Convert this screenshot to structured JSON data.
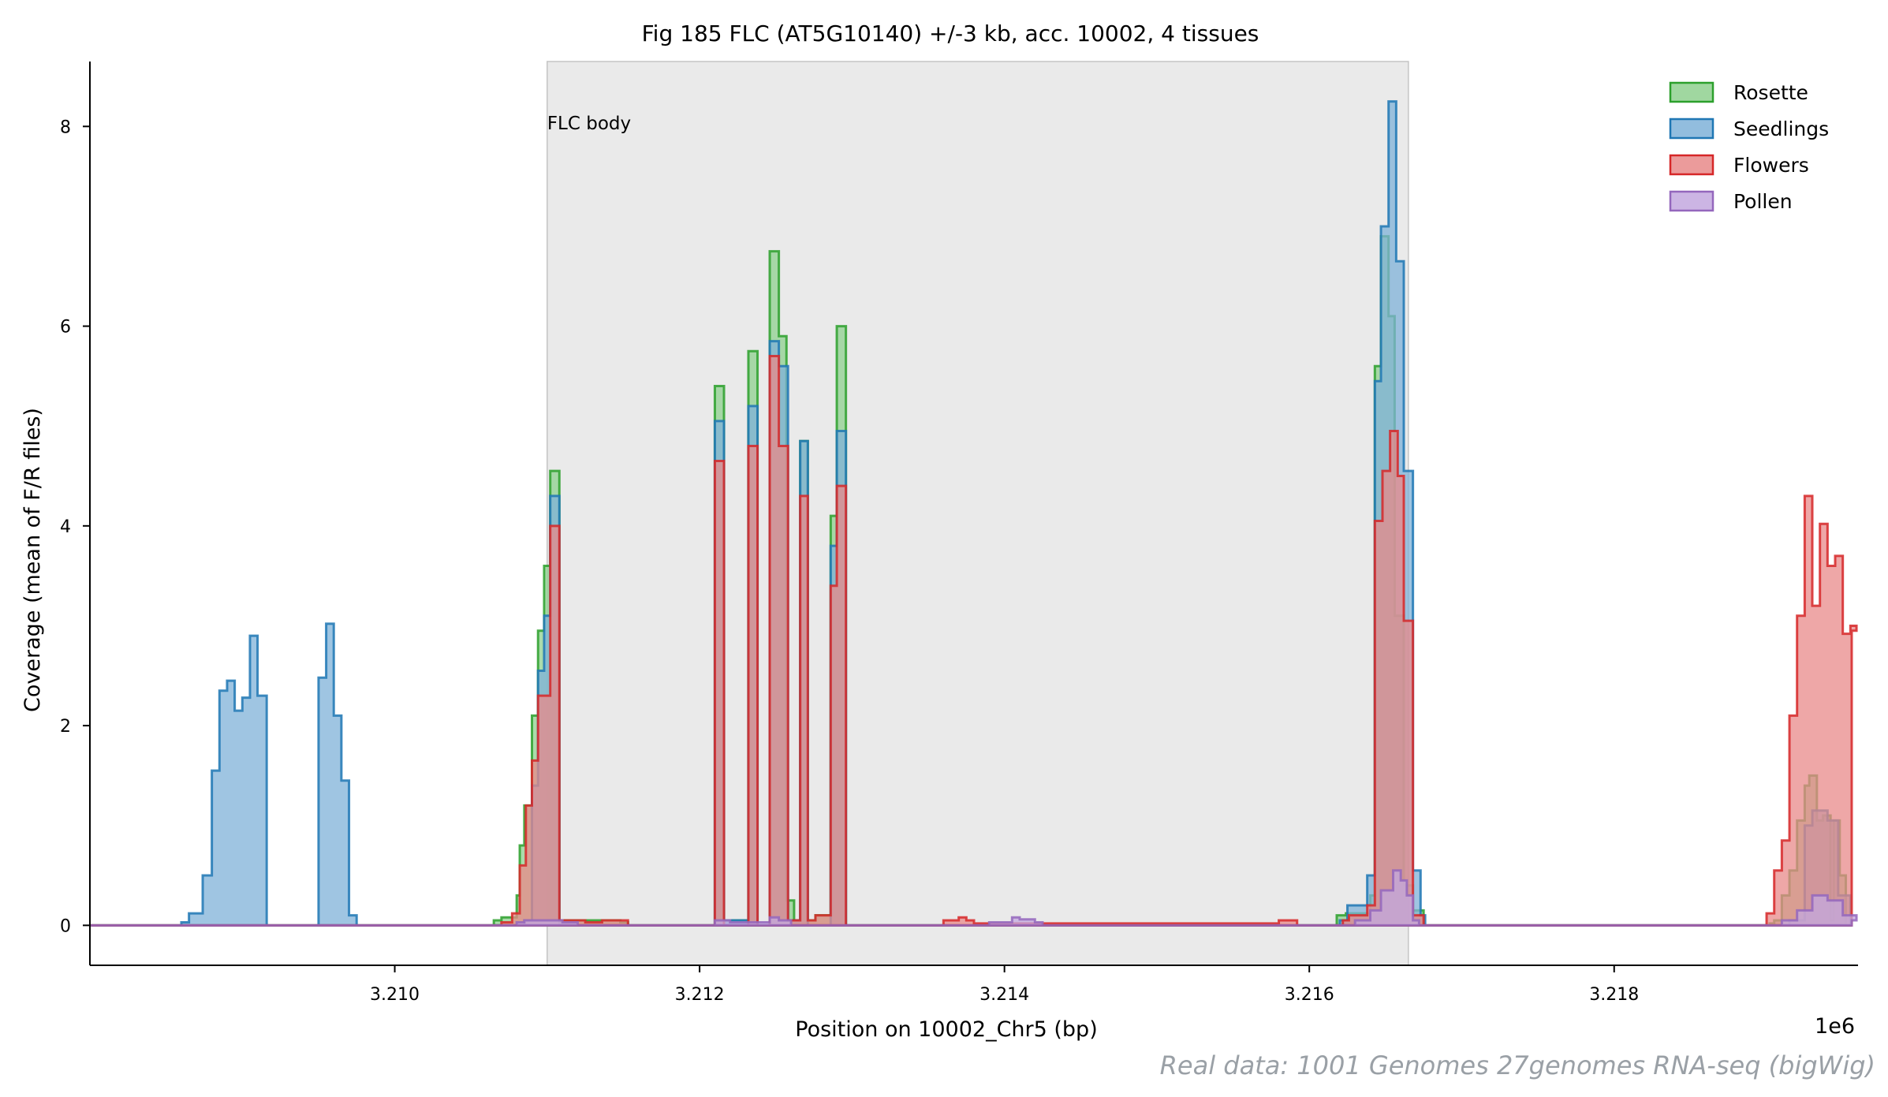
{
  "chart_data": {
    "type": "area",
    "title": "Fig 185  FLC (AT5G10140) +/-3 kb, acc. 10002, 4 tissues",
    "xlabel": "Position on 10002_Chr5 (bp)",
    "ylabel": "Coverage (mean of F/R files)",
    "x_offset_label": "1e6",
    "xlim": [
      3208000,
      3219600
    ],
    "ylim": [
      -0.4,
      8.65
    ],
    "x_ticks": [
      3210000,
      3212000,
      3214000,
      3216000,
      3218000
    ],
    "x_tick_labels": [
      "3.210",
      "3.212",
      "3.214",
      "3.216",
      "3.218"
    ],
    "y_ticks": [
      0,
      2,
      4,
      6,
      8
    ],
    "y_tick_labels": [
      "0",
      "2",
      "4",
      "6",
      "8"
    ],
    "legend_position": "top-right",
    "region": {
      "label": "FLC body",
      "start": 3211000,
      "end": 3216650
    },
    "footer": "Real data: 1001 Genomes 27genomes RNA-seq (bigWig)",
    "series": [
      {
        "name": "Rosette",
        "color": "#2ca02c",
        "fill": "#8fd08f",
        "points": [
          [
            3208000,
            0
          ],
          [
            3210650,
            0.05
          ],
          [
            3210700,
            0.08
          ],
          [
            3210800,
            0.3
          ],
          [
            3210820,
            0.8
          ],
          [
            3210850,
            1.2
          ],
          [
            3210900,
            2.1
          ],
          [
            3210940,
            2.95
          ],
          [
            3210980,
            3.6
          ],
          [
            3211020,
            4.55
          ],
          [
            3211080,
            0.05
          ],
          [
            3211200,
            0.05
          ],
          [
            3211480,
            0.03
          ],
          [
            3211530,
            0
          ],
          [
            3212100,
            5.4
          ],
          [
            3212160,
            0.05
          ],
          [
            3212220,
            0.05
          ],
          [
            3212320,
            5.75
          ],
          [
            3212380,
            0
          ],
          [
            3212460,
            6.75
          ],
          [
            3212520,
            5.9
          ],
          [
            3212570,
            0.25
          ],
          [
            3212620,
            0.05
          ],
          [
            3212660,
            4.85
          ],
          [
            3212710,
            0.05
          ],
          [
            3212760,
            0.1
          ],
          [
            3212860,
            4.1
          ],
          [
            3212900,
            6.0
          ],
          [
            3212960,
            0
          ],
          [
            3216180,
            0.1
          ],
          [
            3216240,
            0.12
          ],
          [
            3216400,
            0.3
          ],
          [
            3216430,
            5.6
          ],
          [
            3216470,
            6.9
          ],
          [
            3216520,
            6.1
          ],
          [
            3216560,
            3.1
          ],
          [
            3216620,
            0.4
          ],
          [
            3216680,
            0.15
          ],
          [
            3216750,
            0
          ],
          [
            3219020,
            0.02
          ],
          [
            3219050,
            0.05
          ],
          [
            3219100,
            0.3
          ],
          [
            3219150,
            0.55
          ],
          [
            3219200,
            1.05
          ],
          [
            3219250,
            1.4
          ],
          [
            3219280,
            1.5
          ],
          [
            3219330,
            1.05
          ],
          [
            3219370,
            1.1
          ],
          [
            3219420,
            0.05
          ],
          [
            3219440,
            1.05
          ],
          [
            3219480,
            0.5
          ],
          [
            3219520,
            0
          ]
        ]
      },
      {
        "name": "Seedlings",
        "color": "#1f77b4",
        "fill": "#7fb2d8",
        "points": [
          [
            3208000,
            0
          ],
          [
            3208600,
            0.03
          ],
          [
            3208650,
            0.12
          ],
          [
            3208740,
            0.5
          ],
          [
            3208800,
            1.55
          ],
          [
            3208850,
            2.35
          ],
          [
            3208900,
            2.45
          ],
          [
            3208950,
            2.15
          ],
          [
            3209000,
            2.28
          ],
          [
            3209050,
            2.9
          ],
          [
            3209100,
            2.3
          ],
          [
            3209160,
            0
          ],
          [
            3209500,
            2.48
          ],
          [
            3209550,
            3.02
          ],
          [
            3209600,
            2.1
          ],
          [
            3209650,
            1.45
          ],
          [
            3209700,
            0.1
          ],
          [
            3209750,
            0
          ],
          [
            3210850,
            0.05
          ],
          [
            3210900,
            1.4
          ],
          [
            3210940,
            2.55
          ],
          [
            3210980,
            3.1
          ],
          [
            3211020,
            4.3
          ],
          [
            3211080,
            0
          ],
          [
            3212100,
            5.05
          ],
          [
            3212160,
            0.05
          ],
          [
            3212320,
            5.2
          ],
          [
            3212380,
            0
          ],
          [
            3212460,
            5.85
          ],
          [
            3212520,
            5.6
          ],
          [
            3212580,
            0.05
          ],
          [
            3212660,
            4.85
          ],
          [
            3212710,
            0
          ],
          [
            3212860,
            3.8
          ],
          [
            3212900,
            4.95
          ],
          [
            3212960,
            0
          ],
          [
            3216200,
            0.05
          ],
          [
            3216250,
            0.2
          ],
          [
            3216380,
            0.5
          ],
          [
            3216430,
            5.45
          ],
          [
            3216470,
            7.0
          ],
          [
            3216520,
            8.25
          ],
          [
            3216570,
            6.65
          ],
          [
            3216620,
            4.55
          ],
          [
            3216680,
            0.55
          ],
          [
            3216730,
            0.1
          ],
          [
            3216760,
            0
          ],
          [
            3219150,
            0.05
          ],
          [
            3219250,
            1.0
          ],
          [
            3219300,
            1.15
          ],
          [
            3219400,
            1.05
          ],
          [
            3219470,
            0.3
          ],
          [
            3219550,
            0
          ]
        ]
      },
      {
        "name": "Flowers",
        "color": "#d62728",
        "fill": "#e88a8a",
        "points": [
          [
            3208000,
            0
          ],
          [
            3210700,
            0.03
          ],
          [
            3210770,
            0.12
          ],
          [
            3210820,
            0.6
          ],
          [
            3210860,
            1.2
          ],
          [
            3210900,
            1.65
          ],
          [
            3210940,
            2.3
          ],
          [
            3211020,
            4.0
          ],
          [
            3211080,
            0.05
          ],
          [
            3211250,
            0.03
          ],
          [
            3211360,
            0.05
          ],
          [
            3211480,
            0.05
          ],
          [
            3211530,
            0
          ],
          [
            3212100,
            4.65
          ],
          [
            3212160,
            0
          ],
          [
            3212320,
            4.8
          ],
          [
            3212380,
            0
          ],
          [
            3212460,
            5.7
          ],
          [
            3212520,
            4.8
          ],
          [
            3212580,
            0.05
          ],
          [
            3212660,
            4.3
          ],
          [
            3212710,
            0.05
          ],
          [
            3212760,
            0.1
          ],
          [
            3212860,
            3.4
          ],
          [
            3212900,
            4.4
          ],
          [
            3212960,
            0
          ],
          [
            3213600,
            0.05
          ],
          [
            3213700,
            0.08
          ],
          [
            3213750,
            0.05
          ],
          [
            3213800,
            0.02
          ],
          [
            3215800,
            0.05
          ],
          [
            3215880,
            0.05
          ],
          [
            3215920,
            0
          ],
          [
            3216220,
            0.05
          ],
          [
            3216260,
            0.1
          ],
          [
            3216380,
            0.2
          ],
          [
            3216430,
            4.05
          ],
          [
            3216480,
            4.55
          ],
          [
            3216530,
            4.95
          ],
          [
            3216580,
            4.5
          ],
          [
            3216620,
            3.05
          ],
          [
            3216680,
            0.1
          ],
          [
            3216750,
            0
          ],
          [
            3219000,
            0.12
          ],
          [
            3219050,
            0.55
          ],
          [
            3219100,
            0.85
          ],
          [
            3219150,
            2.1
          ],
          [
            3219200,
            3.1
          ],
          [
            3219250,
            4.3
          ],
          [
            3219300,
            3.2
          ],
          [
            3219350,
            4.02
          ],
          [
            3219400,
            3.6
          ],
          [
            3219450,
            3.7
          ],
          [
            3219500,
            2.92
          ],
          [
            3219550,
            3.0
          ],
          [
            3219590,
            2.95
          ]
        ]
      },
      {
        "name": "Pollen",
        "color": "#9467bd",
        "fill": "#c3a8df",
        "points": [
          [
            3208000,
            0
          ],
          [
            3210800,
            0.03
          ],
          [
            3210850,
            0.05
          ],
          [
            3211100,
            0.03
          ],
          [
            3211200,
            0
          ],
          [
            3212100,
            0.05
          ],
          [
            3212200,
            0.03
          ],
          [
            3212460,
            0.08
          ],
          [
            3212520,
            0.05
          ],
          [
            3212600,
            0
          ],
          [
            3213900,
            0.03
          ],
          [
            3214050,
            0.08
          ],
          [
            3214100,
            0.06
          ],
          [
            3214200,
            0.03
          ],
          [
            3214250,
            0
          ],
          [
            3216300,
            0.05
          ],
          [
            3216400,
            0.15
          ],
          [
            3216470,
            0.35
          ],
          [
            3216550,
            0.55
          ],
          [
            3216600,
            0.45
          ],
          [
            3216640,
            0.3
          ],
          [
            3216680,
            0.05
          ],
          [
            3216720,
            0
          ],
          [
            3219100,
            0.05
          ],
          [
            3219200,
            0.15
          ],
          [
            3219300,
            0.3
          ],
          [
            3219400,
            0.25
          ],
          [
            3219500,
            0.1
          ],
          [
            3219590,
            0.05
          ]
        ]
      }
    ]
  }
}
